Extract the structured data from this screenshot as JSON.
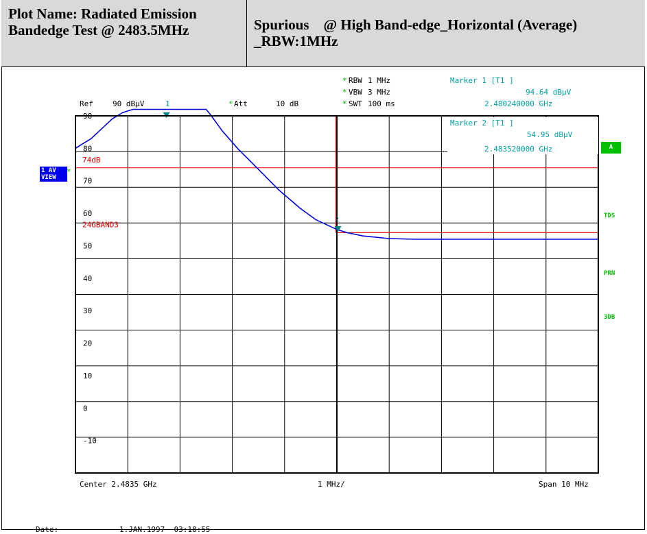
{
  "header": {
    "left_title": "Plot Name: Radiated Emission Bandedge Test @ 2483.5MHz",
    "right_title": "Spurious    @ High Band-edge_Horizontal (Average) _RBW:1MHz"
  },
  "settings": {
    "rbw_label": "RBW",
    "rbw_value": "1 MHz",
    "vbw_label": "VBW",
    "vbw_value": "3 MHz",
    "swt_label": "SWT",
    "swt_value": "100 ms",
    "ref_label": "Ref",
    "ref_value": "90 dBµV",
    "att_label": "Att",
    "att_value": "10 dB"
  },
  "markers": {
    "m1_title": "Marker 1 [T1 ]",
    "m1_level": "94.64 dBµV",
    "m1_freq": "2.480240000 GHz",
    "m2_title": "Marker 2 [T1 ]",
    "m2_level": "54.95 dBµV",
    "m2_freq": "2.483520000 GHz"
  },
  "left_badge": {
    "line1": "1 AV",
    "line2": "VIEW"
  },
  "side_labels": {
    "a": "A",
    "tds": "TDS",
    "prn": "PRN",
    "db3": "3DB"
  },
  "bottom": {
    "center": "Center 2.4835 GHz",
    "div": "1 MHz/",
    "span": "Span 10 MHz",
    "date_label": "Date:",
    "date_value": "1.JAN.1997  03:18:55"
  },
  "colors": {
    "trace": "#0000dd",
    "limit": "#e00000",
    "marker": "#008080",
    "header_bg": "#d9d9d9"
  },
  "chart_data": {
    "type": "line",
    "x_range_ghz": [
      2.4785,
      2.4885
    ],
    "ylim": [
      -20,
      90
    ],
    "y_ticks": [
      90,
      80,
      70,
      60,
      50,
      40,
      30,
      20,
      10,
      0,
      -10
    ],
    "limit_lines": [
      {
        "name": "74dB",
        "value": 74,
        "x_start_ghz": 2.4785
      },
      {
        "name": "24GBAND3",
        "value": 54,
        "x_start_ghz": 2.4835
      }
    ],
    "marker_line_ghz": 2.4835,
    "markers": [
      {
        "id": "1",
        "x_ghz": 2.48024,
        "y": 94.64
      },
      {
        "id": "2",
        "x_ghz": 2.48352,
        "y": 54.95
      }
    ],
    "series": [
      {
        "x": [
          2.4785,
          2.4786,
          2.4787,
          2.4788,
          2.4789,
          2.479,
          2.4791,
          2.4792,
          2.4793,
          2.4794,
          2.4795,
          2.4796,
          2.4798,
          2.4802,
          2.4806,
          2.481,
          2.4811,
          2.4813,
          2.4816,
          2.482,
          2.4824,
          2.4828,
          2.4831,
          2.4833,
          2.4835,
          2.4837,
          2.484,
          2.4845,
          2.485,
          2.486,
          2.487,
          2.488,
          2.4885
        ],
        "values": [
          80,
          81,
          82,
          83,
          84.5,
          86,
          87.5,
          89,
          90,
          91,
          91.5,
          92,
          92,
          92,
          92,
          92,
          90,
          85.5,
          80,
          73.5,
          67,
          61.5,
          58,
          56.5,
          55,
          54,
          53,
          52.2,
          52,
          52,
          52,
          52,
          52
        ]
      }
    ]
  }
}
